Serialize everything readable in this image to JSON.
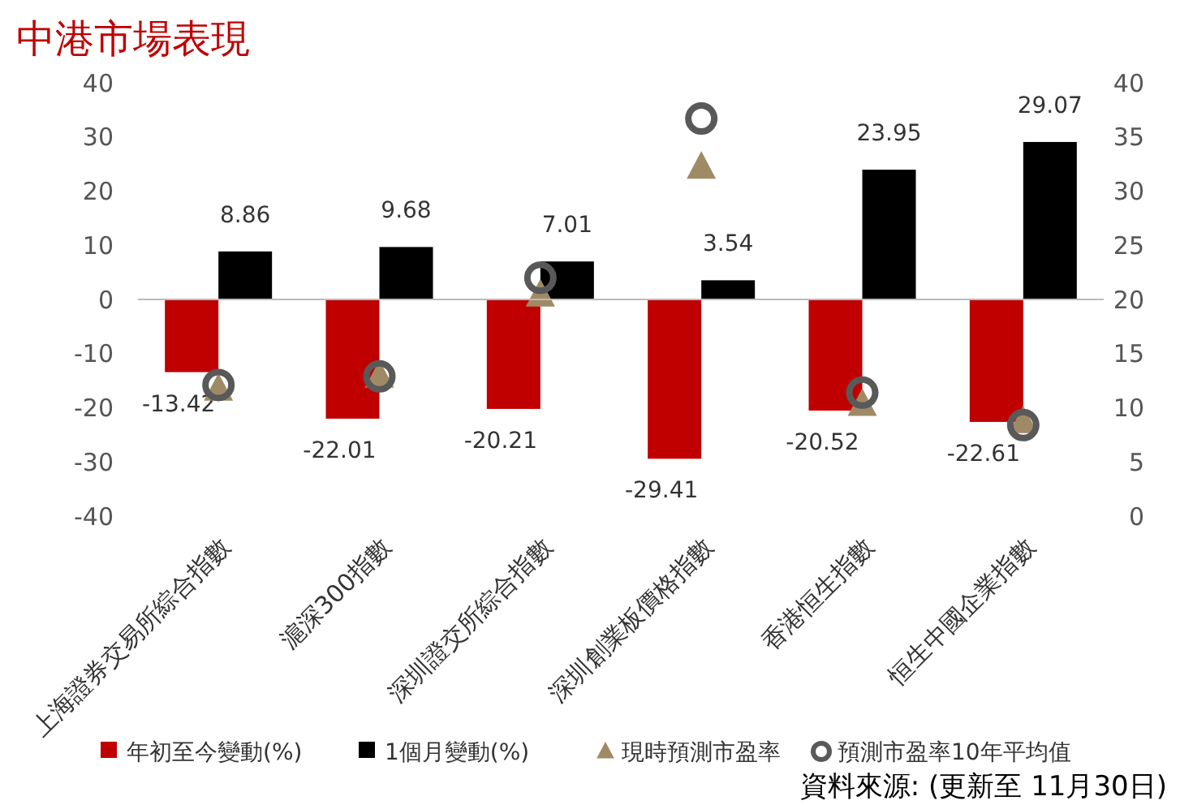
{
  "chart_data": {
    "type": "bar",
    "title": "中港市場表現",
    "categories": [
      "上海證券交易所綜合指數",
      "滬深300指數",
      "深圳證交所綜合指數",
      "深圳創業板價格指數",
      "香港恒生指數",
      "恒生中國企業指數"
    ],
    "series": [
      {
        "name": "年初至今變動(%)",
        "color": "#c00000",
        "values": [
          -13.42,
          -22.01,
          -20.21,
          -29.41,
          -20.52,
          -22.61
        ],
        "value_labels": [
          "-13.42",
          "-22.01",
          "-20.21",
          "-29.41",
          "-20.52",
          "-22.61"
        ]
      },
      {
        "name": "1個月變動(%)",
        "color": "#000000",
        "values": [
          8.86,
          9.68,
          7.01,
          3.54,
          23.95,
          29.07
        ],
        "value_labels": [
          "8.86",
          "9.68",
          "7.01",
          "3.54",
          "23.95",
          "29.07"
        ]
      },
      {
        "name": "現時預測市盈率",
        "type": "scatter",
        "axis": "y2",
        "marker": "triangle",
        "color": "#a08a66",
        "values": [
          11.7,
          12.9,
          20.4,
          32.2,
          10.3,
          8.7
        ]
      },
      {
        "name": "預測市盈率10年平均值",
        "type": "scatter",
        "axis": "y2",
        "marker": "circle",
        "color": "#595959",
        "values": [
          12.1,
          12.9,
          22.0,
          36.7,
          11.4,
          8.4
        ]
      }
    ],
    "ylim": [
      -40,
      40
    ],
    "yticks": [
      -40,
      -30,
      -20,
      -10,
      0,
      10,
      20,
      30,
      40
    ],
    "y2lim": [
      0,
      40
    ],
    "y2ticks": [
      0,
      5,
      10,
      15,
      20,
      25,
      30,
      35,
      40
    ],
    "legend": "bottom",
    "annotations": [
      "資料來源: (更新至 11月30日)"
    ]
  }
}
